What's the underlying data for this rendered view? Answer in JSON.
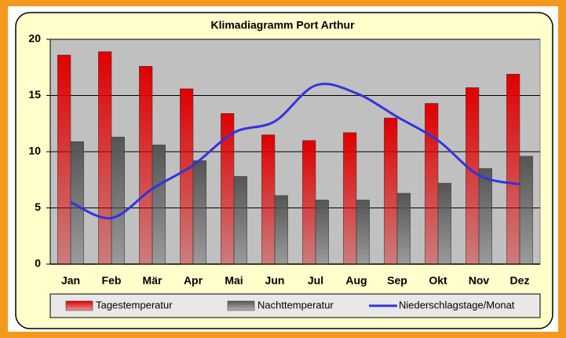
{
  "chart_data": {
    "type": "bar",
    "title": "Klimadiagramm Port Arthur",
    "categories": [
      "Jan",
      "Feb",
      "Mär",
      "Apr",
      "Mai",
      "Jun",
      "Jul",
      "Aug",
      "Sep",
      "Okt",
      "Nov",
      "Dez"
    ],
    "series": [
      {
        "name": "Tagestemperatur",
        "color": "#e00000",
        "type": "bar",
        "values": [
          18.6,
          18.9,
          17.6,
          15.6,
          13.4,
          11.5,
          11.0,
          11.7,
          13.0,
          14.3,
          15.7,
          16.9
        ]
      },
      {
        "name": "Nachttemperatur",
        "color": "#555555",
        "type": "bar",
        "values": [
          10.9,
          11.3,
          10.6,
          9.2,
          7.8,
          6.1,
          5.7,
          5.7,
          6.3,
          7.2,
          8.5,
          9.6
        ]
      },
      {
        "name": "Niederschlagstage/Monat",
        "color": "#3333dd",
        "type": "line",
        "values": [
          5.5,
          4.1,
          6.7,
          8.8,
          11.7,
          12.7,
          15.9,
          15.2,
          13.1,
          11.0,
          7.9,
          7.1
        ]
      }
    ],
    "ylim": [
      0,
      20
    ],
    "yticks": [
      0,
      5,
      10,
      15,
      20
    ],
    "grid": true,
    "legend": "bottom"
  }
}
